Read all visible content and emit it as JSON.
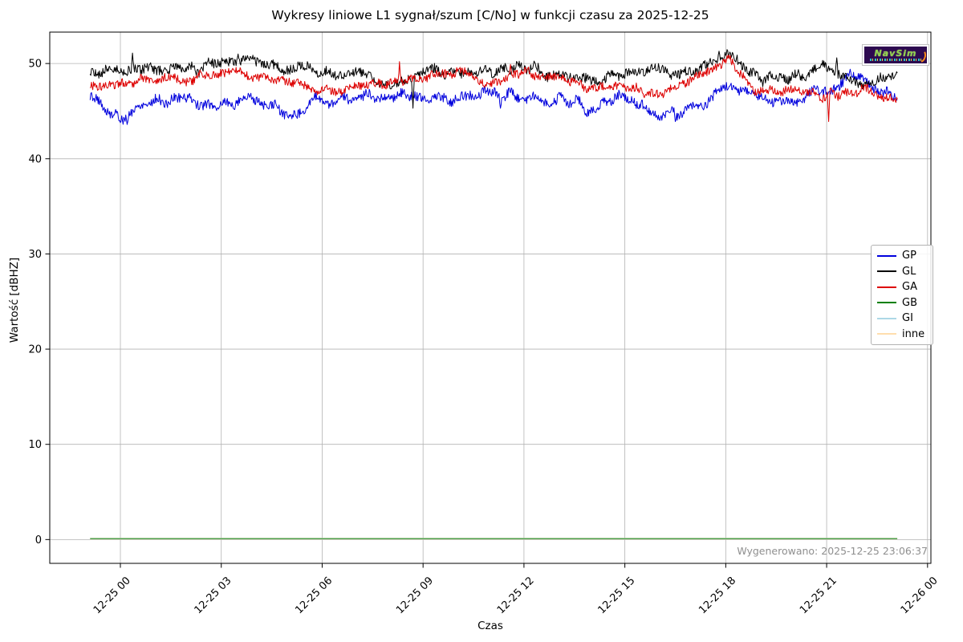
{
  "figure": {
    "watermark": {
      "brand": "NavSim"
    },
    "generated_note": "Wygenerowano: 2025-12-25 23:06:37"
  },
  "chart_data": {
    "type": "line",
    "title": "Wykresy liniowe L1 sygnał/szum [C/No] w funkcji czasu za 2025-12-25",
    "xlabel": "Czas",
    "ylabel": "Wartość [dBHZ]",
    "grid": true,
    "legend_position": "center right",
    "x_unit": "hours relative to 2025-12-25 00:00",
    "xlim": [
      -2.1,
      24.1
    ],
    "ylim": [
      -2.5,
      53.3
    ],
    "y_ticks": [
      0,
      10,
      20,
      30,
      40,
      50
    ],
    "x_ticks": [
      {
        "hour": 0,
        "label": "12-25 00"
      },
      {
        "hour": 3,
        "label": "12-25 03"
      },
      {
        "hour": 6,
        "label": "12-25 06"
      },
      {
        "hour": 9,
        "label": "12-25 09"
      },
      {
        "hour": 12,
        "label": "12-25 12"
      },
      {
        "hour": 15,
        "label": "12-25 15"
      },
      {
        "hour": 18,
        "label": "12-25 18"
      },
      {
        "hour": 21,
        "label": "12-25 21"
      },
      {
        "hour": 24,
        "label": "12-26 00"
      }
    ],
    "time_range_hours": [
      -0.9,
      23.1
    ],
    "series": [
      {
        "name": "GP",
        "color": "#0000dd",
        "noise": 0.5,
        "wander": 0.55,
        "anchors_hourly": {
          "start_hour": -1,
          "values": [
            46.4,
            44.5,
            45.9,
            46.2,
            45.6,
            46.3,
            44.9,
            46.1,
            46.3,
            46.7,
            46.1,
            46.4,
            46.9,
            46.4,
            46.2,
            45.4,
            46.7,
            44.6,
            45.1,
            47.2,
            46.4,
            46.2,
            47.5,
            48.5,
            46.5
          ]
        },
        "spikes": [
          {
            "t": 0.2,
            "v": 43.6
          },
          {
            "t": 5.1,
            "v": 44.2
          },
          {
            "t": 11.3,
            "v": 45.3
          },
          {
            "t": 16.5,
            "v": 43.9
          },
          {
            "t": 21.7,
            "v": 49.4
          }
        ]
      },
      {
        "name": "GL",
        "color": "#000000",
        "noise": 0.5,
        "wander": 0.5,
        "anchors_hourly": {
          "start_hour": -1,
          "values": [
            49.0,
            49.3,
            49.6,
            49.3,
            50.0,
            50.3,
            49.4,
            49.4,
            48.7,
            48.0,
            49.0,
            49.2,
            49.3,
            49.7,
            48.4,
            48.3,
            48.9,
            49.3,
            49.0,
            50.8,
            48.4,
            48.7,
            49.6,
            48.0,
            48.8
          ]
        },
        "spikes": [
          {
            "t": 0.35,
            "v": 51.1
          },
          {
            "t": 3.5,
            "v": 51.0
          },
          {
            "t": 8.7,
            "v": 45.3
          },
          {
            "t": 17.8,
            "v": 51.3
          },
          {
            "t": 21.3,
            "v": 50.6
          }
        ]
      },
      {
        "name": "GA",
        "color": "#dd0000",
        "noise": 0.45,
        "wander": 0.45,
        "anchors_hourly": {
          "start_hour": -1,
          "values": [
            47.4,
            47.7,
            48.4,
            48.2,
            49.2,
            48.7,
            48.3,
            47.2,
            47.6,
            47.9,
            48.7,
            49.0,
            48.2,
            49.2,
            48.3,
            47.7,
            47.2,
            46.8,
            48.3,
            50.2,
            47.2,
            47.0,
            46.6,
            47.2,
            46.4
          ]
        },
        "spikes": [
          {
            "t": 8.3,
            "v": 50.2
          },
          {
            "t": 11.6,
            "v": 49.9
          },
          {
            "t": 18.1,
            "v": 50.8
          },
          {
            "t": 21.05,
            "v": 43.9
          }
        ]
      },
      {
        "name": "GB",
        "color": "#008000",
        "constant": 0.1
      },
      {
        "name": "GI",
        "color": "#add8e6",
        "constant": 0.1
      },
      {
        "name": "inne",
        "color": "#ffdead",
        "constant": 0.1
      }
    ]
  }
}
